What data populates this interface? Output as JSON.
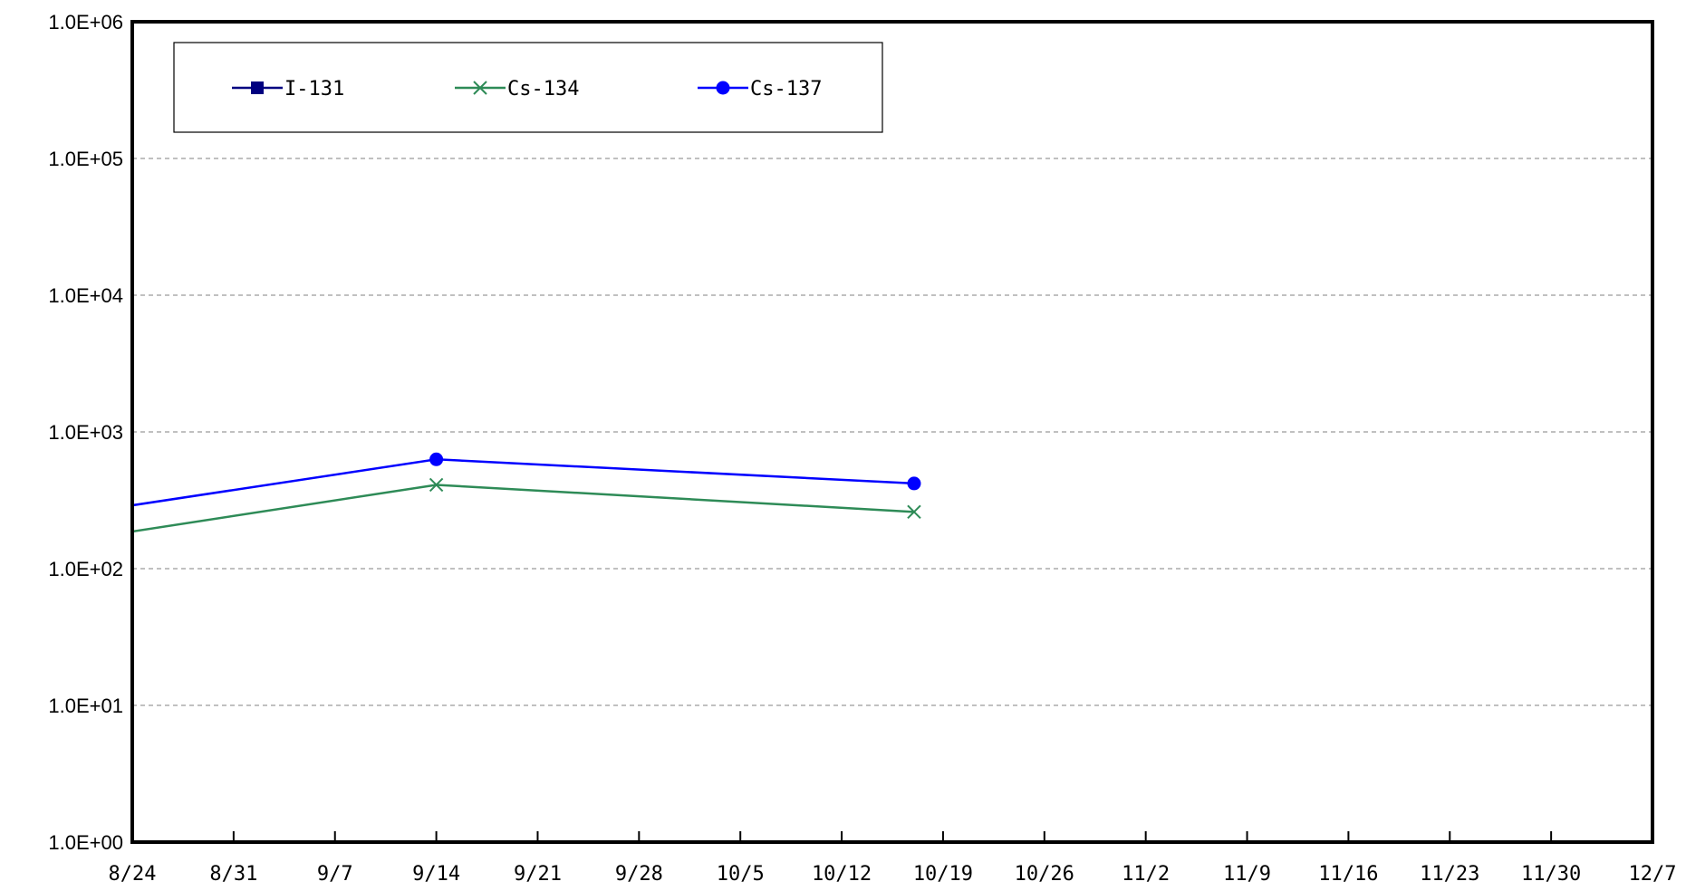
{
  "chart_data": {
    "type": "line",
    "title": "",
    "xlabel": "",
    "ylabel": "",
    "y_scale": "log",
    "ylim": [
      1,
      1000000
    ],
    "xlim": [
      "8/24",
      "12/7"
    ],
    "y_tick_labels": [
      "1.0E+00",
      "1.0E+01",
      "1.0E+02",
      "1.0E+03",
      "1.0E+04",
      "1.0E+05",
      "1.0E+06"
    ],
    "x_tick_labels": [
      "8/24",
      "8/31",
      "9/7",
      "9/14",
      "9/21",
      "9/28",
      "10/5",
      "10/12",
      "10/19",
      "10/26",
      "11/2",
      "11/9",
      "11/16",
      "11/23",
      "11/30",
      "12/7"
    ],
    "grid": "horizontal dashed",
    "legend_position": "top-left",
    "series": [
      {
        "name": "I-131",
        "color": "#000080",
        "marker": "square",
        "points": []
      },
      {
        "name": "Cs-134",
        "color": "#2e8b57",
        "marker": "x",
        "points": [
          {
            "x": "8/23",
            "y": 180
          },
          {
            "x": "9/14",
            "y": 410
          },
          {
            "x": "10/17",
            "y": 260
          }
        ]
      },
      {
        "name": "Cs-137",
        "color": "#0000ff",
        "marker": "circle",
        "points": [
          {
            "x": "8/23",
            "y": 280
          },
          {
            "x": "9/14",
            "y": 630
          },
          {
            "x": "10/17",
            "y": 420
          }
        ]
      }
    ]
  }
}
